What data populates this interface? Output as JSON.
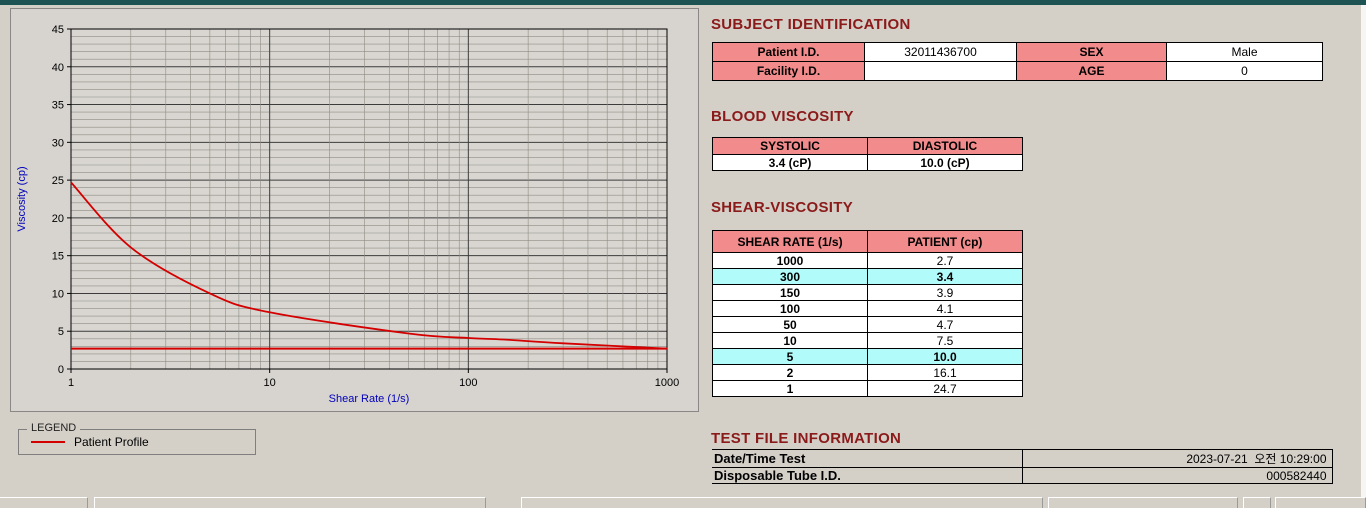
{
  "colors": {
    "top_bar": "#1d5353",
    "heading": "#8b1a1a",
    "table_header_bg": "#f28b8b",
    "highlight_bg": "#b2fbfb",
    "curve": "#d40000",
    "axis_label": "#0000bb"
  },
  "chart_data": {
    "type": "line",
    "xlabel": "Shear Rate (1/s)",
    "ylabel": "Viscosity (cp)",
    "x_scale": "log",
    "xlim": [
      1,
      1000
    ],
    "ylim": [
      0,
      45
    ],
    "x_ticks": [
      1,
      10,
      100,
      1000
    ],
    "y_ticks": [
      0,
      5,
      10,
      15,
      20,
      25,
      30,
      35,
      40,
      45
    ],
    "grid": "dense minor grid, log decades on x, every 1 cp on y",
    "reference_line_y": 2.7,
    "series": [
      {
        "name": "Patient Profile",
        "color": "#d40000",
        "x": [
          1,
          2,
          5,
          10,
          50,
          100,
          150,
          300,
          1000
        ],
        "y": [
          24.7,
          16.1,
          10.0,
          7.5,
          4.7,
          4.1,
          3.9,
          3.4,
          2.7
        ]
      }
    ],
    "legend": {
      "title": "LEGEND",
      "position": "below-chart",
      "entries": [
        {
          "label": "Patient Profile",
          "color": "#d40000"
        }
      ]
    }
  },
  "subject": {
    "heading": "SUBJECT IDENTIFICATION",
    "rows": [
      {
        "label1": "Patient I.D.",
        "value1": "32011436700",
        "label2": "SEX",
        "value2": "Male"
      },
      {
        "label1": "Facility I.D.",
        "value1": "",
        "label2": "AGE",
        "value2": "0"
      }
    ]
  },
  "blood_viscosity": {
    "heading": "BLOOD VISCOSITY",
    "columns": [
      "SYSTOLIC",
      "DIASTOLIC"
    ],
    "values": [
      "3.4 (cP)",
      "10.0 (cP)"
    ]
  },
  "shear_viscosity": {
    "heading": "SHEAR-VISCOSITY",
    "columns": [
      "SHEAR RATE (1/s)",
      "PATIENT (cp)"
    ],
    "rows": [
      {
        "rate": "1000",
        "value": "2.7",
        "highlight": false
      },
      {
        "rate": "300",
        "value": "3.4",
        "highlight": true
      },
      {
        "rate": "150",
        "value": "3.9",
        "highlight": false
      },
      {
        "rate": "100",
        "value": "4.1",
        "highlight": false
      },
      {
        "rate": "50",
        "value": "4.7",
        "highlight": false
      },
      {
        "rate": "10",
        "value": "7.5",
        "highlight": false
      },
      {
        "rate": "5",
        "value": "10.0",
        "highlight": true
      },
      {
        "rate": "2",
        "value": "16.1",
        "highlight": false
      },
      {
        "rate": "1",
        "value": "24.7",
        "highlight": false
      }
    ]
  },
  "test_file": {
    "heading": "TEST FILE INFORMATION",
    "rows": [
      {
        "label": "Date/Time Test",
        "value": "2023-07-21  오전 10:29:00"
      },
      {
        "label": "Disposable Tube I.D.",
        "value": "000582440"
      }
    ]
  }
}
